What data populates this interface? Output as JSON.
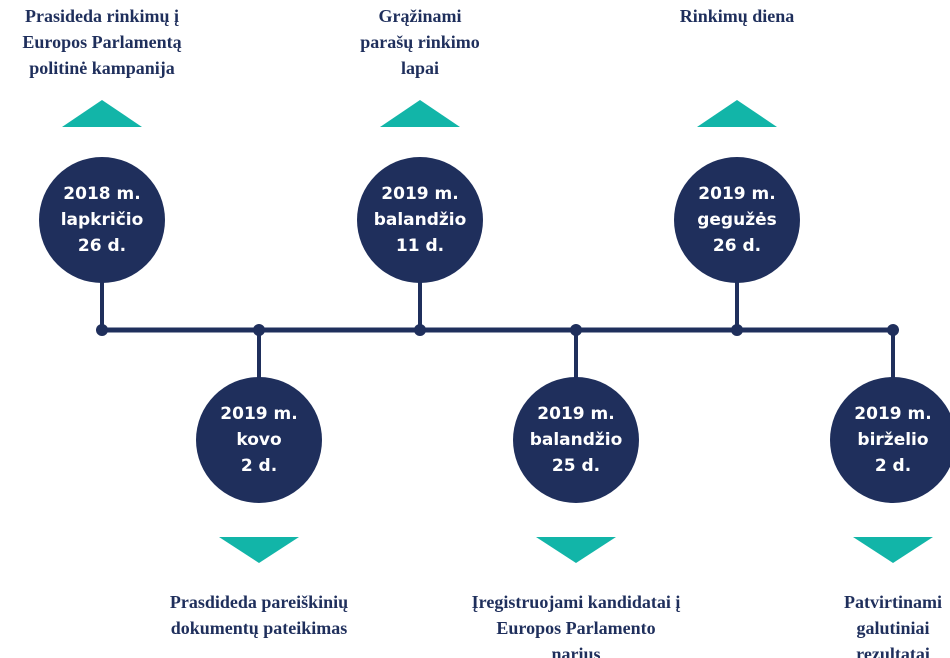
{
  "events": [
    {
      "date": [
        "2018 m.",
        "lapkričio",
        "26 d."
      ],
      "description": [
        "Prasideda rinkimų į",
        "Europos Parlamentą",
        "politinė kampanija"
      ]
    },
    {
      "date": [
        "2019 m.",
        "kovo",
        "2 d."
      ],
      "description": [
        "Prasdideda pareiškinių",
        "dokumentų pateikimas"
      ]
    },
    {
      "date": [
        "2019 m.",
        "balandžio",
        "11 d."
      ],
      "description": [
        "Grąžinami",
        "parašų rinkimo",
        "lapai"
      ]
    },
    {
      "date": [
        "2019 m.",
        "balandžio",
        "25 d."
      ],
      "description": [
        "Įregistruojami kandidatai į",
        "Europos Parlamento",
        "narius"
      ]
    },
    {
      "date": [
        "2019 m.",
        "gegužės",
        "26 d."
      ],
      "description": [
        "Rinkimų diena"
      ]
    },
    {
      "date": [
        "2019 m.",
        "birželio",
        "2 d."
      ],
      "description": [
        "Patvirtinami",
        "galutiniai",
        "rezultatai"
      ]
    }
  ]
}
